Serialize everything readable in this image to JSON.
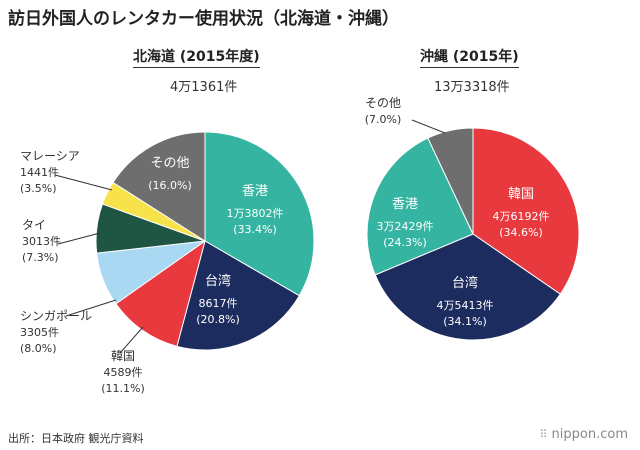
{
  "title": "訪日外国人のレンタカー使用状況（北海道・沖縄）",
  "source": "出所：日本政府 観光庁資料",
  "brand": "nippon.com",
  "colors": {
    "hongkong": "#35b5a1",
    "taiwan": "#1d2c5e",
    "korea": "#e8393f",
    "singapore": "#a8d8f2",
    "thailand": "#1f5543",
    "malaysia": "#f8e24a",
    "other": "#6e6e6e"
  },
  "chart_data": [
    {
      "type": "pie",
      "title": "北海道 (2015年度)",
      "total": "4万1361件",
      "start": "12 o'clock",
      "direction": "clockwise",
      "slices": [
        {
          "name": "香港",
          "count": "1万3802件",
          "pct_label": "(33.4%)",
          "value": 33.4,
          "color_key": "hongkong",
          "label_pos": "inside"
        },
        {
          "name": "台湾",
          "count": "8617件",
          "pct_label": "(20.8%)",
          "value": 20.8,
          "color_key": "taiwan",
          "label_pos": "inside"
        },
        {
          "name": "韓国",
          "count": "4589件",
          "pct_label": "(11.1%)",
          "value": 11.1,
          "color_key": "korea",
          "label_pos": "outside"
        },
        {
          "name": "シンガポール",
          "count": "3305件",
          "pct_label": "(8.0%)",
          "value": 8.0,
          "color_key": "singapore",
          "label_pos": "outside"
        },
        {
          "name": "タイ",
          "count": "3013件",
          "pct_label": "(7.3%)",
          "value": 7.3,
          "color_key": "thailand",
          "label_pos": "outside"
        },
        {
          "name": "マレーシア",
          "count": "1441件",
          "pct_label": "(3.5%)",
          "value": 3.5,
          "color_key": "malaysia",
          "label_pos": "outside"
        },
        {
          "name": "その他",
          "count": "",
          "pct_label": "(16.0%)",
          "value": 16.0,
          "color_key": "other",
          "label_pos": "inside"
        }
      ]
    },
    {
      "type": "pie",
      "title": "沖縄 (2015年)",
      "total": "13万3318件",
      "start": "12 o'clock",
      "direction": "clockwise",
      "slices": [
        {
          "name": "韓国",
          "count": "4万6192件",
          "pct_label": "(34.6%)",
          "value": 34.6,
          "color_key": "korea",
          "label_pos": "inside"
        },
        {
          "name": "台湾",
          "count": "4万5413件",
          "pct_label": "(34.1%)",
          "value": 34.1,
          "color_key": "taiwan",
          "label_pos": "inside"
        },
        {
          "name": "香港",
          "count": "3万2429件",
          "pct_label": "(24.3%)",
          "value": 24.3,
          "color_key": "hongkong",
          "label_pos": "inside"
        },
        {
          "name": "その他",
          "count": "",
          "pct_label": "(7.0%)",
          "value": 7.0,
          "color_key": "other",
          "label_pos": "outside"
        }
      ]
    }
  ]
}
